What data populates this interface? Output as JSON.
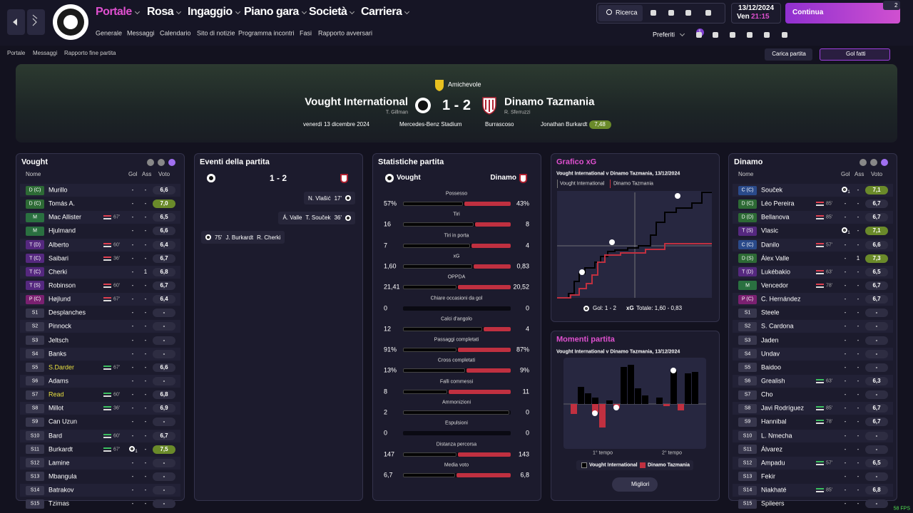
{
  "nav": {
    "menu": [
      "Portale",
      "Rosa",
      "Ingaggio",
      "Piano gara",
      "Società",
      "Carriera"
    ],
    "submenu": [
      "Generale",
      "Messaggi",
      "Calendario",
      "Sito di notizie",
      "Programma incontri",
      "Fasi",
      "Rapporto avversari"
    ],
    "search": "Ricerca",
    "date": "13/12/2024",
    "day": "Ven",
    "time": "21:15",
    "continue": "Continua",
    "notifications": "2",
    "favorites": "Preferiti",
    "favorites_badge": "1"
  },
  "breadcrumb": [
    "Portale",
    "Messaggi",
    "Rapporto fine partita"
  ],
  "actions": {
    "load": "Carica partita",
    "highlights": "Gol fatti"
  },
  "match": {
    "competition": "Amichevole",
    "home": "Vought International",
    "home_manager": "T. Gillman",
    "score": "1 - 2",
    "away": "Dinamo Tazmania",
    "away_manager": "R. Sferruzzi",
    "date": "venerdì 13 dicembre 2024",
    "stadium": "Mercedes-Benz Stadium",
    "weather": "Burrascoso",
    "player_of_match": "Jonathan Burkardt",
    "player_of_match_rating": "7,48"
  },
  "home_lineup": {
    "title": "Vought",
    "columns": [
      "Nome",
      "Gol",
      "Ass",
      "Voto"
    ],
    "rows": [
      {
        "pos": "D (C)",
        "name": "Murillo",
        "gol": "-",
        "ass": "-",
        "voto": "6,6"
      },
      {
        "pos": "D (C)",
        "name": "Tomás A.",
        "gol": "-",
        "ass": "-",
        "voto": "7,0",
        "best": true
      },
      {
        "pos": "M",
        "name": "Mac Allister",
        "sub_off": "67'",
        "gol": "-",
        "ass": "-",
        "voto": "6,5"
      },
      {
        "pos": "M",
        "name": "Hjulmand",
        "gol": "-",
        "ass": "-",
        "voto": "6,6"
      },
      {
        "pos": "T (D)",
        "name": "Alberto",
        "sub_off": "60'",
        "gol": "-",
        "ass": "-",
        "voto": "6,4"
      },
      {
        "pos": "T (C)",
        "name": "Saibari",
        "sub_off": "36'",
        "gol": "-",
        "ass": "-",
        "voto": "6,7"
      },
      {
        "pos": "T (C)",
        "name": "Cherki",
        "gol": "-",
        "ass": "1",
        "voto": "6,8"
      },
      {
        "pos": "T (S)",
        "name": "Robinson",
        "sub_off": "60'",
        "gol": "-",
        "ass": "-",
        "voto": "6,7"
      },
      {
        "pos": "P (C)",
        "name": "Højlund",
        "sub_off": "67'",
        "gol": "-",
        "ass": "-",
        "voto": "6,4"
      },
      {
        "pos": "S1",
        "name": "Desplanches",
        "gol": "-",
        "ass": "-",
        "voto": "-"
      },
      {
        "pos": "S2",
        "name": "Pinnock",
        "gol": "-",
        "ass": "-",
        "voto": "-"
      },
      {
        "pos": "S3",
        "name": "Jeltsch",
        "gol": "-",
        "ass": "-",
        "voto": "-"
      },
      {
        "pos": "S4",
        "name": "Banks",
        "gol": "-",
        "ass": "-",
        "voto": "-"
      },
      {
        "pos": "S5",
        "name": "S.Darder",
        "highlight": true,
        "sub_on": "67'",
        "gol": "-",
        "ass": "-",
        "voto": "6,6"
      },
      {
        "pos": "S6",
        "name": "Adams",
        "gol": "-",
        "ass": "-",
        "voto": "-"
      },
      {
        "pos": "S7",
        "name": "Read",
        "highlight": true,
        "sub_on": "60'",
        "gol": "-",
        "ass": "-",
        "voto": "6,8"
      },
      {
        "pos": "S8",
        "name": "Millot",
        "sub_on": "36'",
        "gol": "-",
        "ass": "-",
        "voto": "6,9"
      },
      {
        "pos": "S9",
        "name": "Can Uzun",
        "gol": "-",
        "ass": "-",
        "voto": "-"
      },
      {
        "pos": "S10",
        "name": "Bard",
        "sub_on": "60'",
        "gol": "-",
        "ass": "-",
        "voto": "6,7"
      },
      {
        "pos": "S11",
        "name": "Burkardt",
        "sub_on": "67'",
        "goal_icon": true,
        "gol": "1",
        "ass": "-",
        "voto": "7,5",
        "best": true
      },
      {
        "pos": "S12",
        "name": "Lamine",
        "gol": "-",
        "ass": "-",
        "voto": "-"
      },
      {
        "pos": "S13",
        "name": "Mbangula",
        "gol": "-",
        "ass": "-",
        "voto": "-"
      },
      {
        "pos": "S14",
        "name": "Batrakov",
        "gol": "-",
        "ass": "-",
        "voto": "-"
      },
      {
        "pos": "S15",
        "name": "Tzimas",
        "gol": "-",
        "ass": "-",
        "voto": "-"
      }
    ]
  },
  "away_lineup": {
    "title": "Dinamo",
    "columns": [
      "Nome",
      "Gol",
      "Ass",
      "Voto"
    ],
    "rows": [
      {
        "pos": "C (C)",
        "name": "Souček",
        "goal_icon": true,
        "gol": "1",
        "ass": "-",
        "voto": "7,1",
        "best": true
      },
      {
        "pos": "D (C)",
        "name": "Léo Pereira",
        "sub_off": "85'",
        "gol": "-",
        "ass": "-",
        "voto": "6,7"
      },
      {
        "pos": "D (D)",
        "name": "Bellanova",
        "sub_off": "85'",
        "gol": "-",
        "ass": "-",
        "voto": "6,7"
      },
      {
        "pos": "T (S)",
        "name": "Vlasic",
        "goal_icon": true,
        "gol": "1",
        "ass": "-",
        "voto": "7,1",
        "best": true
      },
      {
        "pos": "C (C)",
        "name": "Danilo",
        "sub_off": "57'",
        "gol": "-",
        "ass": "-",
        "voto": "6,6"
      },
      {
        "pos": "D (S)",
        "name": "Álex Valle",
        "gol": "-",
        "ass": "1",
        "voto": "7,3",
        "best": true
      },
      {
        "pos": "T (D)",
        "name": "Lukébakio",
        "sub_off": "63'",
        "gol": "-",
        "ass": "-",
        "voto": "6,5"
      },
      {
        "pos": "M",
        "name": "Vencedor",
        "sub_off": "78'",
        "gol": "-",
        "ass": "-",
        "voto": "6,7"
      },
      {
        "pos": "P (C)",
        "name": "C. Hernández",
        "gol": "-",
        "ass": "-",
        "voto": "6,7"
      },
      {
        "pos": "S1",
        "name": "Steele",
        "gol": "-",
        "ass": "-",
        "voto": "-"
      },
      {
        "pos": "S2",
        "name": "S. Cardona",
        "gol": "-",
        "ass": "-",
        "voto": "-"
      },
      {
        "pos": "S3",
        "name": "Jaden",
        "gol": "-",
        "ass": "-",
        "voto": "-"
      },
      {
        "pos": "S4",
        "name": "Undav",
        "gol": "-",
        "ass": "-",
        "voto": "-"
      },
      {
        "pos": "S5",
        "name": "Baidoo",
        "gol": "-",
        "ass": "-",
        "voto": "-"
      },
      {
        "pos": "S6",
        "name": "Grealish",
        "sub_on": "63'",
        "gol": "-",
        "ass": "-",
        "voto": "6,3"
      },
      {
        "pos": "S7",
        "name": "Cho",
        "gol": "-",
        "ass": "-",
        "voto": "-"
      },
      {
        "pos": "S8",
        "name": "Javi Rodríguez",
        "sub_on": "85'",
        "gol": "-",
        "ass": "-",
        "voto": "6,7"
      },
      {
        "pos": "S9",
        "name": "Hannibal",
        "sub_on": "78'",
        "gol": "-",
        "ass": "-",
        "voto": "6,7"
      },
      {
        "pos": "S10",
        "name": "L. Nmecha",
        "gol": "-",
        "ass": "-",
        "voto": "-"
      },
      {
        "pos": "S11",
        "name": "Álvarez",
        "gol": "-",
        "ass": "-",
        "voto": "-"
      },
      {
        "pos": "S12",
        "name": "Ampadu",
        "sub_on": "57'",
        "gol": "-",
        "ass": "-",
        "voto": "6,5"
      },
      {
        "pos": "S13",
        "name": "Fekir",
        "gol": "-",
        "ass": "-",
        "voto": "-"
      },
      {
        "pos": "S14",
        "name": "Niakhaté",
        "sub_on": "85'",
        "gol": "-",
        "ass": "-",
        "voto": "6,8"
      },
      {
        "pos": "S15",
        "name": "Spileers",
        "gol": "-",
        "ass": "-",
        "voto": "-"
      }
    ]
  },
  "events": {
    "title": "Eventi della partita",
    "score": "1 - 2",
    "items": [
      {
        "side": "away",
        "scorer": "N. Vlašić",
        "minute": "17'"
      },
      {
        "side": "away",
        "assist": "Á. Valle",
        "scorer": "T. Souček",
        "minute": "36'"
      },
      {
        "side": "home",
        "minute": "75'",
        "scorer": "J. Burkardt",
        "assist": "R. Cherki"
      }
    ]
  },
  "stats": {
    "title": "Statistiche partita",
    "home": "Vought",
    "away": "Dinamo",
    "rows": [
      {
        "label": "Possesso",
        "home": "57%",
        "away": "43%"
      },
      {
        "label": "Tiri",
        "home": "16",
        "away": "8"
      },
      {
        "label": "Tiri in porta",
        "home": "7",
        "away": "4"
      },
      {
        "label": "xG",
        "home": "1,60",
        "away": "0,83"
      },
      {
        "label": "OPPDA",
        "home": "21,41",
        "away": "20,52"
      },
      {
        "label": "Chiare occasioni da gol",
        "home": "0",
        "away": "0"
      },
      {
        "label": "Calci d'angolo",
        "home": "12",
        "away": "4"
      },
      {
        "label": "Passaggi completati",
        "home": "91%",
        "away": "87%"
      },
      {
        "label": "Cross completati",
        "home": "13%",
        "away": "9%"
      },
      {
        "label": "Falli commessi",
        "home": "8",
        "away": "11"
      },
      {
        "label": "Ammonizioni",
        "home": "2",
        "away": "0"
      },
      {
        "label": "Espulsioni",
        "home": "0",
        "away": "0"
      },
      {
        "label": "Distanza percorsa",
        "home": "147",
        "away": "143"
      },
      {
        "label": "Media voto",
        "home": "6,7",
        "away": "6,8"
      }
    ]
  },
  "xg": {
    "title": "Grafico xG",
    "subtitle": "Vought International v Dinamo Tazmania, 13/12/2024",
    "legend": [
      "Vought International",
      "Dinamo Tazmania"
    ],
    "goals_label": "Gol: 1 - 2",
    "xg_label": "xG",
    "total": "Totale: 1,60 - 0,83"
  },
  "moments": {
    "title": "Momenti partita",
    "subtitle": "Vought International v Dinamo Tazmania, 13/12/2024",
    "halves": [
      "1° tempo",
      "2° tempo"
    ],
    "legend": [
      "Vought International",
      "Dinamo Tazmania"
    ],
    "button": "Migliori"
  },
  "fps": "58 FPS"
}
